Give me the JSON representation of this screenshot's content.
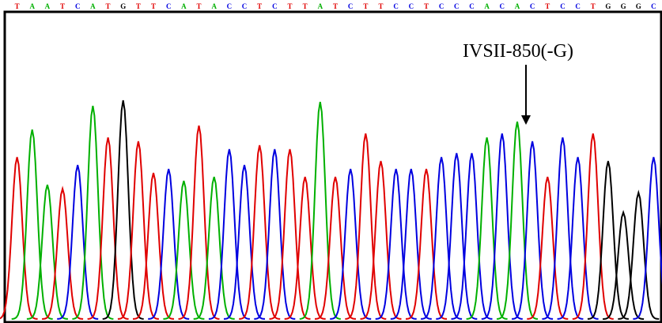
{
  "annotation": "IVSII-850(-G)",
  "sequence": [
    "T",
    "A",
    "A",
    "T",
    "C",
    "A",
    "T",
    "G",
    "T",
    "T",
    "C",
    "A",
    "T",
    "A",
    "C",
    "C",
    "T",
    "C",
    "T",
    "T",
    "A",
    "T",
    "C",
    "T",
    "T",
    "C",
    "C",
    "T",
    "C",
    "C",
    "C",
    "A",
    "C",
    "A",
    "C",
    "T",
    "C",
    "C",
    "T",
    "G",
    "G",
    "G",
    "C"
  ],
  "peak_heights": [
    205,
    240,
    170,
    165,
    195,
    270,
    230,
    277,
    225,
    185,
    190,
    175,
    245,
    180,
    215,
    195,
    220,
    215,
    215,
    180,
    275,
    180,
    190,
    235,
    200,
    190,
    190,
    190,
    205,
    210,
    210,
    230,
    235,
    250,
    225,
    180,
    230,
    205,
    235,
    200,
    135,
    160,
    205
  ],
  "base_colors": {
    "T": "#e00000",
    "A": "#00b000",
    "C": "#0000e0",
    "G": "#000000"
  }
}
